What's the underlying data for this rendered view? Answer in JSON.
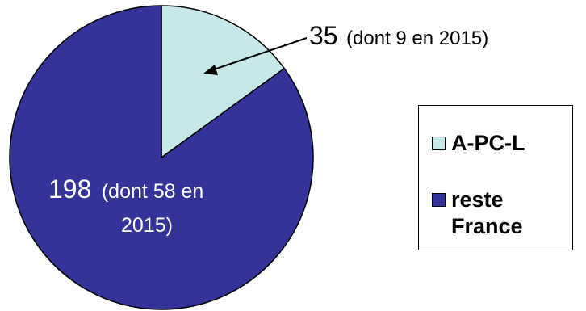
{
  "chart_data": {
    "type": "pie",
    "series": [
      {
        "name": "A-PC-L",
        "value": 35,
        "label_value": "35",
        "label_detail": "(dont 9 en 2015)",
        "color": "#c6e8e8"
      },
      {
        "name": "reste France",
        "value": 198,
        "label_value": "198",
        "label_detail": "(dont 58 en 2015)",
        "color": "#333399"
      }
    ],
    "legend_placement": "right"
  }
}
